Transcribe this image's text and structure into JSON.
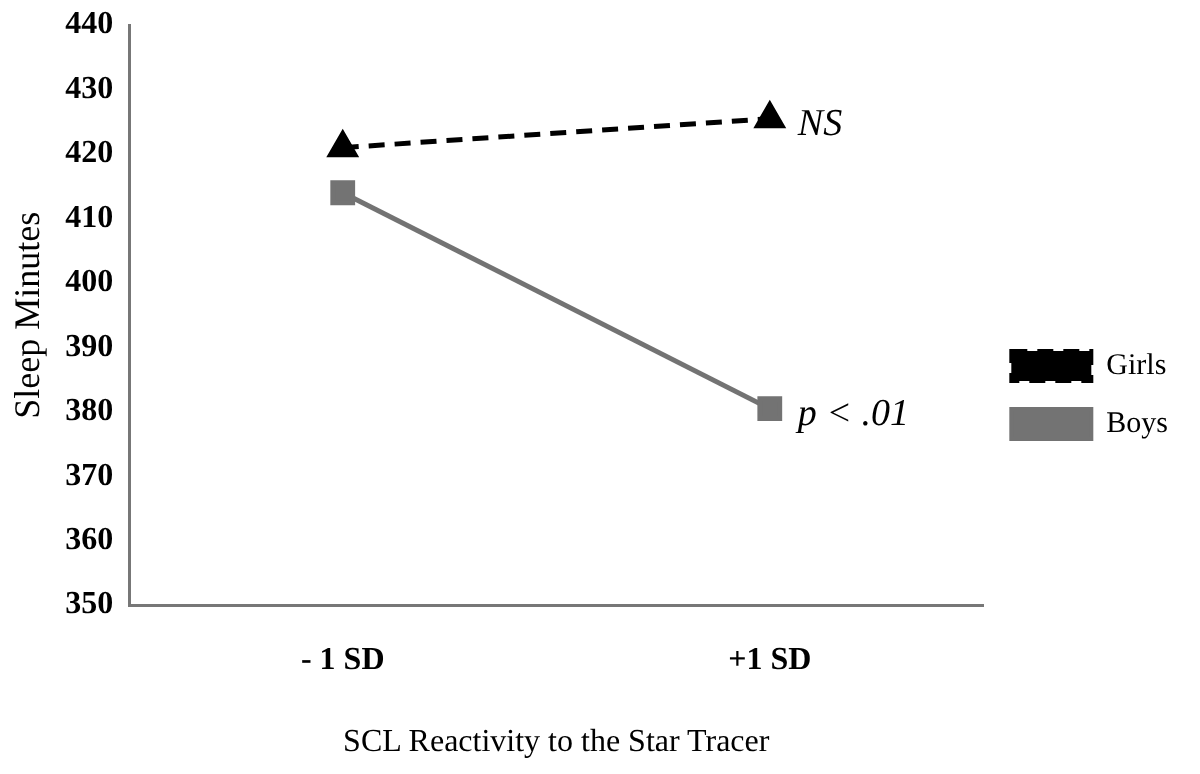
{
  "chart_data": {
    "type": "line",
    "xlabel": "SCL Reactivity to the Star Tracer",
    "ylabel": "Sleep Minutes",
    "categories": [
      "- 1 SD",
      "+1 SD"
    ],
    "series": [
      {
        "name": "Girls",
        "color": "#000000",
        "values": [
          421,
          425.5
        ],
        "marker": "triangle",
        "line_style": "dashed"
      },
      {
        "name": "Boys",
        "color": "#737373",
        "values": [
          414,
          380.5
        ],
        "marker": "square",
        "line_style": "solid"
      }
    ],
    "ylim": [
      350,
      440
    ],
    "yticks": [
      350,
      360,
      370,
      380,
      390,
      400,
      410,
      420,
      430,
      440
    ],
    "grid": false,
    "legend": "right",
    "annotations": [
      {
        "text": "NS",
        "x": "+1 SD",
        "y": 425.5
      },
      {
        "text": "p < .01",
        "x": "+1 SD",
        "y": 380.5
      }
    ]
  }
}
